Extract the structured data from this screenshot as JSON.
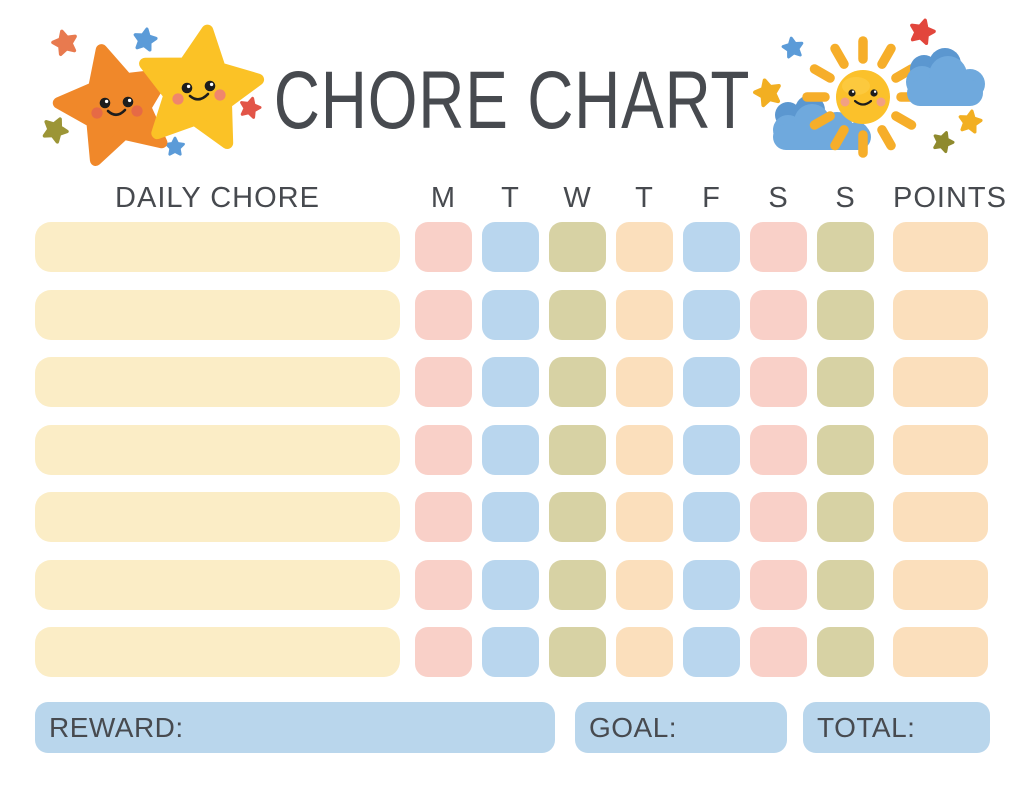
{
  "title": "CHORE CHART",
  "palette": {
    "text": "#474A4F",
    "cream": "#FBEDC6",
    "pink": "#F9D0C8",
    "blue": "#B9D6EE",
    "olive": "#D7D2A4",
    "peach": "#FBDFBC",
    "box_blue": "#B9D6EC"
  },
  "table": {
    "chore_header": "DAILY CHORE",
    "points_header": "POINTS",
    "day_headers": [
      "M",
      "T",
      "W",
      "T",
      "F",
      "S",
      "S"
    ],
    "rows": 7,
    "day_color_pattern": [
      "pink",
      "blue",
      "olive",
      "peach",
      "blue",
      "pink",
      "olive"
    ],
    "chore_color": "cream",
    "points_color": "peach"
  },
  "footer": {
    "reward_label": "REWARD:",
    "goal_label": "GOAL:",
    "total_label": "TOTAL:"
  },
  "illustrations": {
    "left": "two-smiling-stars",
    "right": "smiling-sun-with-clouds"
  }
}
